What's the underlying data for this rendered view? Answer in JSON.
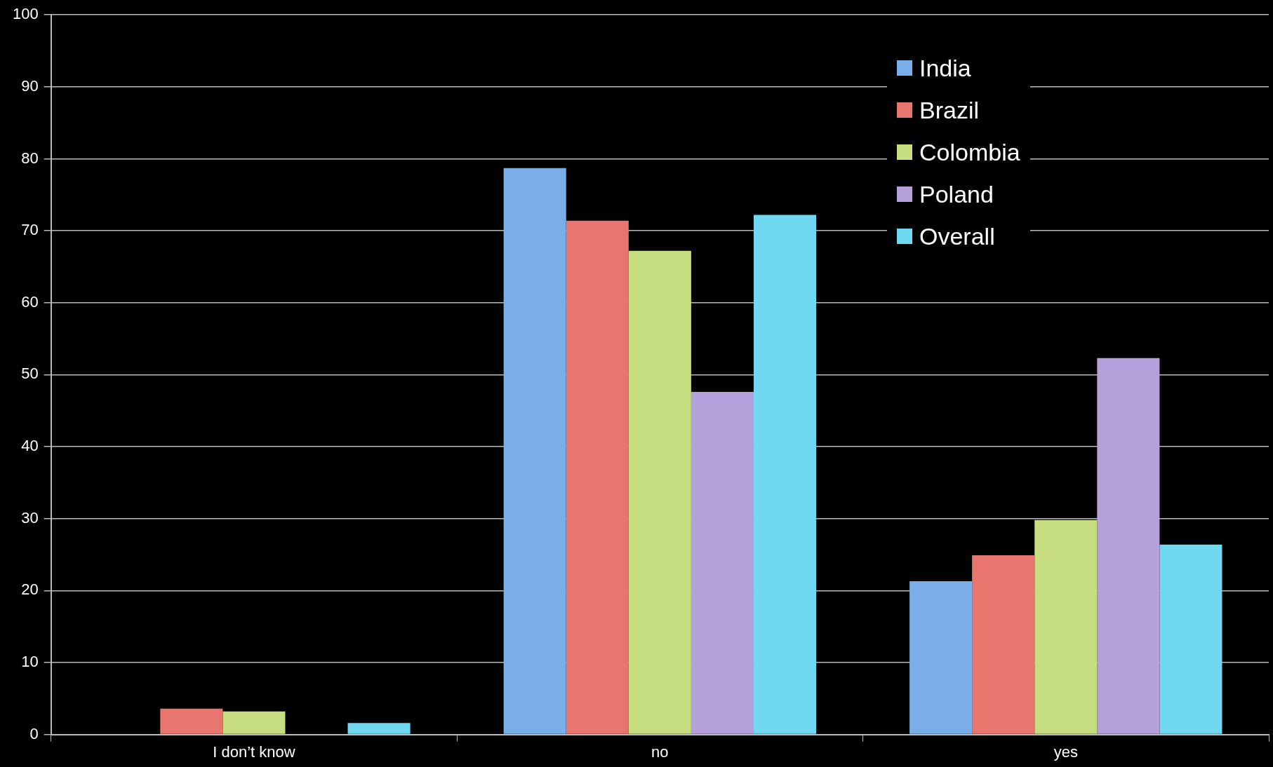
{
  "chart_data": {
    "type": "bar",
    "categories": [
      "I don’t know",
      "no",
      "yes"
    ],
    "series": [
      {
        "name": "India",
        "color": "#7aaee8",
        "values": [
          0,
          78.7,
          21.3
        ]
      },
      {
        "name": "Brazil",
        "color": "#e8766e",
        "values": [
          3.6,
          71.4,
          24.9
        ]
      },
      {
        "name": "Colombia",
        "color": "#c6de80",
        "values": [
          3.2,
          67.2,
          29.8
        ]
      },
      {
        "name": "Poland",
        "color": "#b6a0dc",
        "values": [
          0,
          47.6,
          52.3
        ]
      },
      {
        "name": "Overall",
        "color": "#70d8f0",
        "values": [
          1.6,
          72.2,
          26.4
        ]
      }
    ],
    "ylim": [
      0,
      100
    ],
    "yticks": [
      0,
      10,
      20,
      30,
      40,
      50,
      60,
      70,
      80,
      90,
      100
    ],
    "grid": "y",
    "legend": "top right"
  }
}
